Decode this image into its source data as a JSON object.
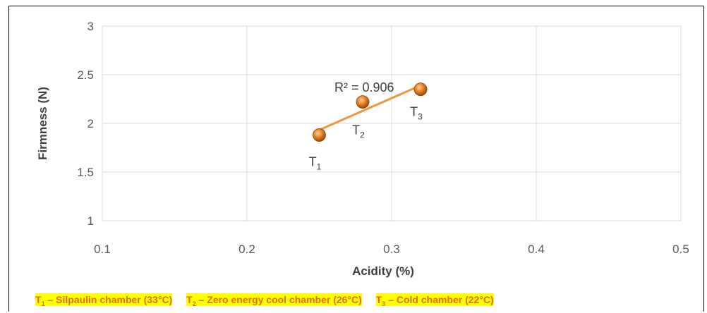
{
  "chart_data": {
    "type": "scatter",
    "xlabel": "Acidity (%)",
    "ylabel": "Firmness (N)",
    "xlim": [
      0.1,
      0.5
    ],
    "ylim": [
      1,
      3
    ],
    "x_ticks": [
      "0.1",
      "0.2",
      "0.3",
      "0.4",
      "0.5"
    ],
    "y_ticks": [
      "1",
      "1.5",
      "2",
      "2.5",
      "3"
    ],
    "grid": true,
    "points": [
      {
        "label": "T",
        "sub": "1",
        "x": 0.25,
        "y": 1.88
      },
      {
        "label": "T",
        "sub": "2",
        "x": 0.28,
        "y": 2.22
      },
      {
        "label": "T",
        "sub": "3",
        "x": 0.32,
        "y": 2.35
      }
    ],
    "trendline": {
      "type": "linear",
      "r2_label": "R² = 0.906"
    },
    "colors": {
      "marker": "#e8862a",
      "trendline": "#f0953f",
      "legend_text": "#e46c0a",
      "legend_bg": "#ffff00"
    }
  },
  "legend": [
    {
      "t": "T",
      "sub": "1",
      "text": "– Silpaulin chamber (33°C)"
    },
    {
      "t": "T",
      "sub": "2",
      "text": "– Zero energy cool chamber (26°C)"
    },
    {
      "t": "T",
      "sub": "3",
      "text": "– Cold chamber (22°C)"
    }
  ]
}
